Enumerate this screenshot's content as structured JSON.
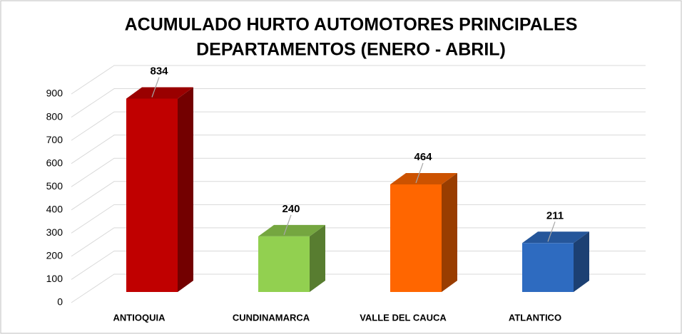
{
  "chart_data": {
    "type": "bar3d",
    "title": [
      "ACUMULADO HURTO AUTOMOTORES PRINCIPALES",
      "DEPARTAMENTOS (ENERO - ABRIL)"
    ],
    "categories": [
      "ANTIOQUIA",
      "CUNDINAMARCA",
      "VALLE DEL CAUCA",
      "ATLANTICO"
    ],
    "values": [
      834,
      240,
      464,
      211
    ],
    "colors": [
      "#c00000",
      "#92d050",
      "#ff6600",
      "#2e6bc0"
    ],
    "ylim": [
      0,
      900
    ],
    "yticks": [
      0,
      100,
      200,
      300,
      400,
      500,
      600,
      700,
      800,
      900
    ],
    "grid": true
  }
}
